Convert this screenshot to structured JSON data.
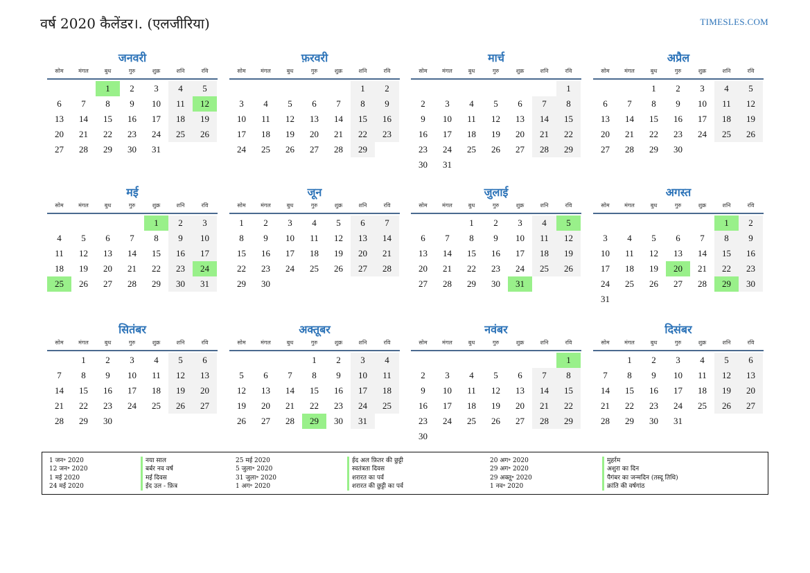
{
  "header": {
    "title": "वर्ष 2020 कैलेंडर।. (एलजीरिया)",
    "site": "TIMESLES.COM"
  },
  "weekdays": [
    "सोम",
    "मंगल",
    "बुध",
    "गुरु",
    "शुक्र",
    "शनि",
    "रवि"
  ],
  "months": [
    {
      "name": "जनवरी",
      "offset": 2,
      "days": 31,
      "holidays": [
        1,
        12
      ]
    },
    {
      "name": "फ़रवरी",
      "offset": 5,
      "days": 29,
      "holidays": []
    },
    {
      "name": "मार्च",
      "offset": 6,
      "days": 31,
      "holidays": []
    },
    {
      "name": "अप्रैल",
      "offset": 2,
      "days": 30,
      "holidays": []
    },
    {
      "name": "मई",
      "offset": 4,
      "days": 31,
      "holidays": [
        1,
        24,
        25
      ]
    },
    {
      "name": "जून",
      "offset": 0,
      "days": 30,
      "holidays": []
    },
    {
      "name": "जुलाई",
      "offset": 2,
      "days": 31,
      "holidays": [
        5,
        31
      ]
    },
    {
      "name": "अगस्त",
      "offset": 5,
      "days": 31,
      "holidays": [
        1,
        20,
        29
      ]
    },
    {
      "name": "सितंबर",
      "offset": 1,
      "days": 30,
      "holidays": []
    },
    {
      "name": "अक्तूबर",
      "offset": 3,
      "days": 31,
      "holidays": [
        29
      ]
    },
    {
      "name": "नवंबर",
      "offset": 6,
      "days": 30,
      "holidays": [
        1
      ]
    },
    {
      "name": "दिसंबर",
      "offset": 1,
      "days": 31,
      "holidays": []
    }
  ],
  "holidays": [
    {
      "date": "1 जन॰ 2020",
      "name": "नया साल"
    },
    {
      "date": "12 जन॰ 2020",
      "name": "बर्बर नव वर्ष"
    },
    {
      "date": "1 मई 2020",
      "name": "मई दिवस"
    },
    {
      "date": "24 मई 2020",
      "name": "ईद उल - फ़ित्र"
    },
    {
      "date": "25 मई 2020",
      "name": "ईद अल फ़ितर की छुट्टी"
    },
    {
      "date": "5 जुला॰ 2020",
      "name": "स्वतंत्रता दिवस"
    },
    {
      "date": "31 जुला॰ 2020",
      "name": "शरारत का पर्व"
    },
    {
      "date": "1 अग॰ 2020",
      "name": "शरारत की छुट्टी का पर्व"
    },
    {
      "date": "20 अग॰ 2020",
      "name": "मुहर्रम"
    },
    {
      "date": "29 अग॰ 2020",
      "name": "अशुरा का दिन"
    },
    {
      "date": "29 अक्तू॰ 2020",
      "name": "पैगंबर का जन्मदिन (तस्दू तिथि)"
    },
    {
      "date": "1 नव॰ 2020",
      "name": "क्रांति की वर्षगांठ"
    }
  ],
  "colors": {
    "accent": "#2c73b8",
    "holiday": "#99f08a",
    "weekend": "#f2f2f2"
  }
}
